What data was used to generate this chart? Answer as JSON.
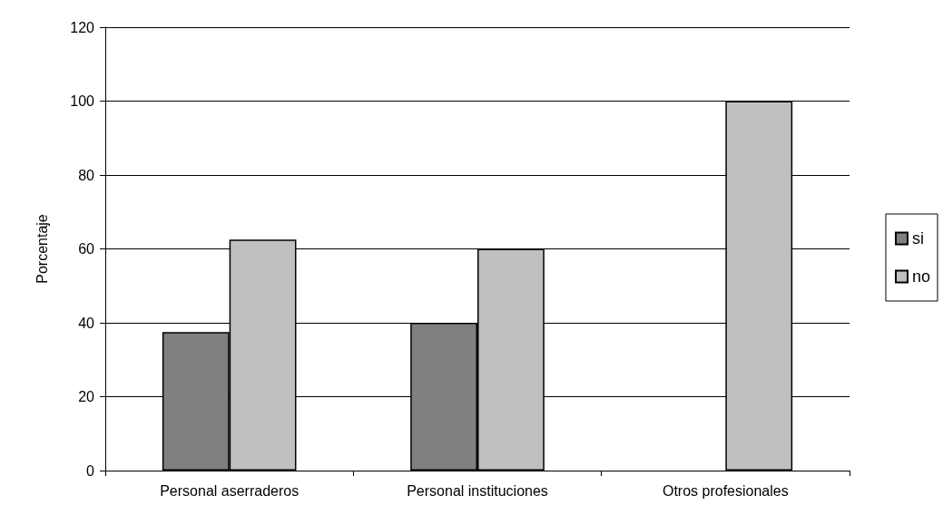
{
  "chart_data": {
    "type": "bar",
    "ylabel": "Porcentaje",
    "categories": [
      "Personal aserraderos",
      "Personal instituciones",
      "Otros profesionales"
    ],
    "series": [
      {
        "name": "si",
        "color": "#808080",
        "values": [
          37.5,
          40,
          0
        ]
      },
      {
        "name": "no",
        "color": "#c0c0c0",
        "values": [
          62.5,
          60,
          100
        ]
      }
    ],
    "ylim": [
      0,
      120
    ],
    "yticks": [
      0,
      20,
      40,
      60,
      80,
      100,
      120
    ],
    "grid": "y",
    "legend": "right"
  }
}
